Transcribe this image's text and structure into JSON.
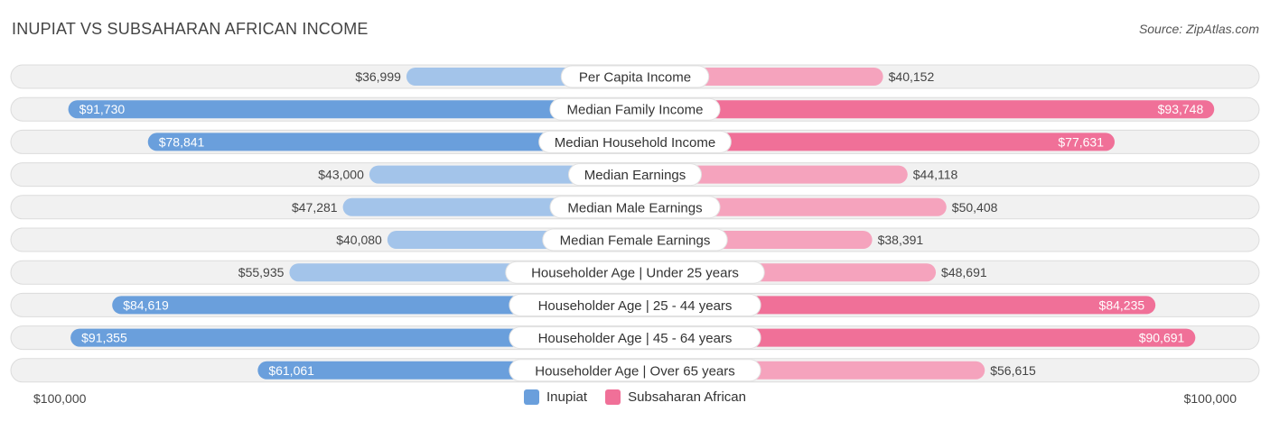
{
  "header": {
    "title": "INUPIAT VS SUBSAHARAN AFRICAN INCOME",
    "source": "Source: ZipAtlas.com"
  },
  "colors": {
    "left_strong": "#6a9fdc",
    "left_light": "#a3c4ea",
    "right_strong": "#f07098",
    "right_light": "#f5a3bd",
    "track": "#f1f1f1",
    "track_border": "#dcdcdc"
  },
  "chart_data": {
    "type": "bar",
    "orientation": "horizontal-butterfly",
    "title": "INUPIAT VS SUBSAHARAN AFRICAN INCOME",
    "axis_max": 100000,
    "axis_labels": {
      "left": "$100,000",
      "right": "$100,000"
    },
    "legend": {
      "position": "bottom-center",
      "left": "Inupiat",
      "right": "Subsaharan African"
    },
    "categories": [
      "Per Capita Income",
      "Median Family Income",
      "Median Household Income",
      "Median Earnings",
      "Median Male Earnings",
      "Median Female Earnings",
      "Householder Age | Under 25 years",
      "Householder Age | 25 - 44 years",
      "Householder Age | 45 - 64 years",
      "Householder Age | Over 65 years"
    ],
    "series": [
      {
        "name": "Inupiat",
        "values": [
          36999,
          91730,
          78841,
          43000,
          47281,
          40080,
          55935,
          84619,
          91355,
          61061
        ],
        "labels": [
          "$36,999",
          "$91,730",
          "$78,841",
          "$43,000",
          "$47,281",
          "$40,080",
          "$55,935",
          "$84,619",
          "$91,355",
          "$61,061"
        ]
      },
      {
        "name": "Subsaharan African",
        "values": [
          40152,
          93748,
          77631,
          44118,
          50408,
          38391,
          48691,
          84235,
          90691,
          56615
        ],
        "labels": [
          "$40,152",
          "$93,748",
          "$77,631",
          "$44,118",
          "$50,408",
          "$38,391",
          "$48,691",
          "$84,235",
          "$90,691",
          "$56,615"
        ]
      }
    ]
  }
}
